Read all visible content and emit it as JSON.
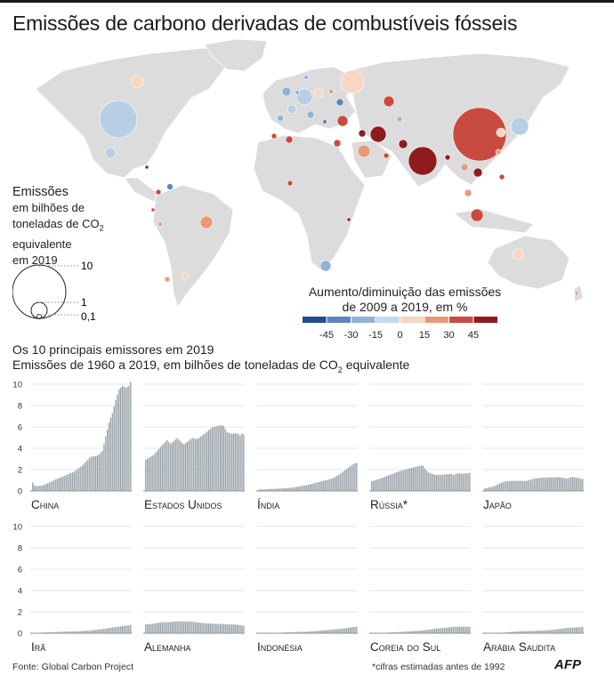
{
  "title": "Emissões de carbono derivadas de combustíveis fósseis",
  "size_legend": {
    "title": "Emissões",
    "line1": "em bilhões de",
    "line2_prefix": "toneladas de CO",
    "line2_sub": "2",
    "line3": "equivalente",
    "line4": "em 2019",
    "values": [
      "10",
      "1",
      "0,1"
    ]
  },
  "color_legend": {
    "line1": "Aumento/diminuição das emissões",
    "line2": "de 2009 a 2019, em %",
    "ticks": [
      "-45",
      "-30",
      "-15",
      "0",
      "15",
      "30",
      "45"
    ],
    "colors": [
      "#1f4f8a",
      "#5b86bb",
      "#8fb3d9",
      "#c6d9ec",
      "#f7d6c2",
      "#e79a7a",
      "#c94a40",
      "#8e1c1f"
    ]
  },
  "panel": {
    "line1": "Os 10 principais emissores em 2019",
    "line2_prefix": "Emissões de 1960 a 2019, em bilhões de toneladas de CO",
    "line2_sub": "2",
    "line2_suffix": " equivalente"
  },
  "chart_data": {
    "type": "bar",
    "subtitle": "Emissões de 1960 a 2019, em bilhões de toneladas de CO2 equivalente",
    "years": [
      1960,
      2019
    ],
    "ylim": [
      0,
      10
    ],
    "yticks": [
      0,
      2,
      4,
      6,
      8,
      10
    ],
    "series": [
      {
        "name": "China",
        "anchors": [
          [
            1960,
            0.78
          ],
          [
            1961,
            0.55
          ],
          [
            1962,
            0.44
          ],
          [
            1966,
            0.52
          ],
          [
            1970,
            0.78
          ],
          [
            1975,
            1.15
          ],
          [
            1980,
            1.47
          ],
          [
            1985,
            1.8
          ],
          [
            1990,
            2.4
          ],
          [
            1995,
            3.2
          ],
          [
            1998,
            3.25
          ],
          [
            2000,
            3.4
          ],
          [
            2002,
            3.75
          ],
          [
            2004,
            5.1
          ],
          [
            2006,
            6.4
          ],
          [
            2008,
            7.3
          ],
          [
            2010,
            8.5
          ],
          [
            2012,
            9.5
          ],
          [
            2014,
            9.85
          ],
          [
            2016,
            9.65
          ],
          [
            2018,
            9.85
          ],
          [
            2019,
            10.2
          ]
        ],
        "color": "#9aa3a9"
      },
      {
        "name": "Estados Unidos",
        "anchors": [
          [
            1960,
            2.9
          ],
          [
            1965,
            3.4
          ],
          [
            1970,
            4.3
          ],
          [
            1973,
            4.75
          ],
          [
            1975,
            4.4
          ],
          [
            1979,
            4.95
          ],
          [
            1983,
            4.35
          ],
          [
            1988,
            4.95
          ],
          [
            1991,
            4.85
          ],
          [
            1995,
            5.3
          ],
          [
            2000,
            5.95
          ],
          [
            2005,
            6.15
          ],
          [
            2007,
            6.1
          ],
          [
            2009,
            5.5
          ],
          [
            2012,
            5.35
          ],
          [
            2015,
            5.4
          ],
          [
            2017,
            5.2
          ],
          [
            2018,
            5.4
          ],
          [
            2019,
            5.3
          ]
        ],
        "color": "#9aa3a9"
      },
      {
        "name": "Índia",
        "anchors": [
          [
            1960,
            0.12
          ],
          [
            1970,
            0.2
          ],
          [
            1980,
            0.3
          ],
          [
            1990,
            0.58
          ],
          [
            2000,
            0.98
          ],
          [
            2005,
            1.2
          ],
          [
            2010,
            1.7
          ],
          [
            2015,
            2.3
          ],
          [
            2018,
            2.6
          ],
          [
            2019,
            2.62
          ]
        ],
        "color": "#9aa3a9"
      },
      {
        "name": "Rússia*",
        "anchors": [
          [
            1960,
            0.9
          ],
          [
            1965,
            1.15
          ],
          [
            1970,
            1.45
          ],
          [
            1975,
            1.75
          ],
          [
            1980,
            2.0
          ],
          [
            1985,
            2.2
          ],
          [
            1990,
            2.4
          ],
          [
            1991,
            2.35
          ],
          [
            1992,
            2.1
          ],
          [
            1994,
            1.75
          ],
          [
            1998,
            1.5
          ],
          [
            2000,
            1.5
          ],
          [
            2005,
            1.55
          ],
          [
            2008,
            1.6
          ],
          [
            2009,
            1.5
          ],
          [
            2012,
            1.65
          ],
          [
            2015,
            1.6
          ],
          [
            2019,
            1.68
          ]
        ],
        "color": "#9aa3a9"
      },
      {
        "name": "Japão",
        "anchors": [
          [
            1960,
            0.23
          ],
          [
            1965,
            0.4
          ],
          [
            1970,
            0.77
          ],
          [
            1973,
            0.92
          ],
          [
            1980,
            0.95
          ],
          [
            1985,
            0.93
          ],
          [
            1990,
            1.16
          ],
          [
            1995,
            1.24
          ],
          [
            2000,
            1.26
          ],
          [
            2005,
            1.29
          ],
          [
            2009,
            1.16
          ],
          [
            2013,
            1.31
          ],
          [
            2016,
            1.22
          ],
          [
            2019,
            1.11
          ]
        ],
        "color": "#9aa3a9"
      },
      {
        "name": "Irã",
        "anchors": [
          [
            1960,
            0.03
          ],
          [
            1970,
            0.08
          ],
          [
            1980,
            0.15
          ],
          [
            1990,
            0.2
          ],
          [
            2000,
            0.35
          ],
          [
            2010,
            0.58
          ],
          [
            2019,
            0.78
          ]
        ],
        "color": "#9aa3a9"
      },
      {
        "name": "Alemanha",
        "anchors": [
          [
            1960,
            0.81
          ],
          [
            1965,
            0.9
          ],
          [
            1970,
            1.03
          ],
          [
            1975,
            1.05
          ],
          [
            1979,
            1.12
          ],
          [
            1985,
            1.1
          ],
          [
            1990,
            1.05
          ],
          [
            1995,
            0.93
          ],
          [
            2000,
            0.9
          ],
          [
            2005,
            0.87
          ],
          [
            2010,
            0.83
          ],
          [
            2015,
            0.8
          ],
          [
            2019,
            0.7
          ]
        ],
        "color": "#9aa3a9"
      },
      {
        "name": "Indonésia",
        "anchors": [
          [
            1960,
            0.02
          ],
          [
            1970,
            0.04
          ],
          [
            1980,
            0.1
          ],
          [
            1990,
            0.15
          ],
          [
            2000,
            0.28
          ],
          [
            2010,
            0.42
          ],
          [
            2019,
            0.62
          ]
        ],
        "color": "#9aa3a9"
      },
      {
        "name": "Coreia do Sul",
        "anchors": [
          [
            1960,
            0.02
          ],
          [
            1970,
            0.06
          ],
          [
            1980,
            0.14
          ],
          [
            1990,
            0.25
          ],
          [
            2000,
            0.45
          ],
          [
            2010,
            0.6
          ],
          [
            2019,
            0.61
          ]
        ],
        "color": "#9aa3a9"
      },
      {
        "name": "Arábia Saudita",
        "anchors": [
          [
            1960,
            0.01
          ],
          [
            1970,
            0.04
          ],
          [
            1980,
            0.17
          ],
          [
            1990,
            0.22
          ],
          [
            2000,
            0.3
          ],
          [
            2010,
            0.5
          ],
          [
            2019,
            0.58
          ]
        ],
        "color": "#9aa3a9"
      }
    ]
  },
  "source": "Fonte: Global Carbon Project",
  "footnote": "*cifras estimadas antes de 1992",
  "logo": "AFP"
}
